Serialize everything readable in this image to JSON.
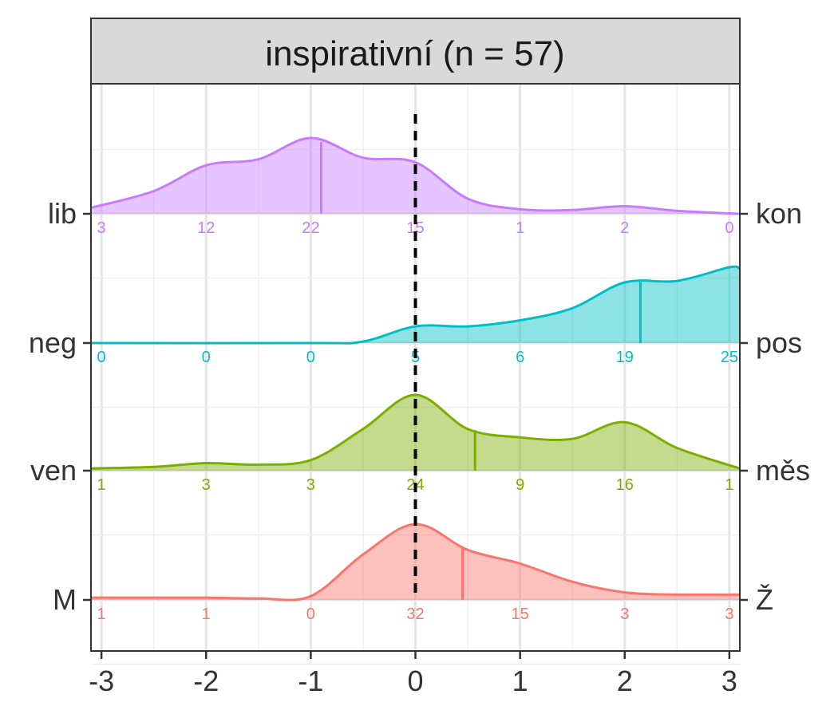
{
  "chart_data": {
    "type": "area",
    "title": "inspirativní (n = 57)",
    "xlabel": "",
    "ylabel": "",
    "xlim": [
      -3.1,
      3.1
    ],
    "x_ticks": [
      -3,
      -2,
      -1,
      0,
      1,
      2,
      3
    ],
    "x_tick_labels": [
      "-3",
      "-2",
      "-1",
      "0",
      "1",
      "2",
      "3"
    ],
    "grid": true,
    "reference_line": {
      "x": 0,
      "style": "dashed",
      "color": "#000000"
    },
    "count_positions": [
      -3,
      -2,
      -1,
      0,
      1,
      2,
      3
    ],
    "series": [
      {
        "left_label": "lib",
        "right_label": "kon",
        "color": "#C77CFF",
        "mean": -0.9,
        "counts": [
          3,
          12,
          22,
          15,
          1,
          2,
          0
        ],
        "density": {
          "x": [
            -3.1,
            -2.5,
            -2.0,
            -1.5,
            -1.0,
            -0.5,
            0.0,
            0.5,
            1.0,
            1.5,
            2.0,
            2.5,
            3.1
          ],
          "y": [
            0.08,
            0.3,
            0.64,
            0.72,
            1.0,
            0.74,
            0.68,
            0.2,
            0.06,
            0.05,
            0.1,
            0.04,
            0.0
          ]
        }
      },
      {
        "left_label": "neg",
        "right_label": "pos",
        "color": "#00BFC4",
        "mean": 2.15,
        "counts": [
          0,
          0,
          0,
          5,
          6,
          19,
          25
        ],
        "density": {
          "x": [
            -3.1,
            -1.0,
            -0.5,
            0.0,
            0.5,
            1.0,
            1.5,
            2.0,
            2.5,
            3.0,
            3.1
          ],
          "y": [
            0.0,
            0.0,
            0.02,
            0.22,
            0.22,
            0.3,
            0.46,
            0.8,
            0.82,
            1.0,
            0.98
          ]
        }
      },
      {
        "left_label": "ven",
        "right_label": "měs",
        "color": "#7CAE00",
        "mean": 0.57,
        "counts": [
          1,
          3,
          3,
          24,
          9,
          16,
          1
        ],
        "density": {
          "x": [
            -3.1,
            -2.5,
            -2.0,
            -1.5,
            -1.0,
            -0.5,
            0.0,
            0.5,
            1.0,
            1.5,
            2.0,
            2.5,
            3.1
          ],
          "y": [
            0.03,
            0.05,
            0.1,
            0.08,
            0.14,
            0.55,
            1.0,
            0.55,
            0.44,
            0.42,
            0.64,
            0.3,
            0.03
          ]
        }
      },
      {
        "left_label": "M",
        "right_label": "Ž",
        "color": "#F8766D",
        "mean": 0.45,
        "counts": [
          1,
          1,
          0,
          32,
          15,
          3,
          3
        ],
        "density": {
          "x": [
            -3.1,
            -2.5,
            -2.0,
            -1.5,
            -1.0,
            -0.5,
            0.0,
            0.5,
            1.0,
            1.5,
            2.0,
            2.5,
            3.1
          ],
          "y": [
            0.03,
            0.03,
            0.03,
            0.02,
            0.05,
            0.6,
            1.0,
            0.66,
            0.48,
            0.24,
            0.1,
            0.07,
            0.07
          ]
        }
      }
    ]
  }
}
